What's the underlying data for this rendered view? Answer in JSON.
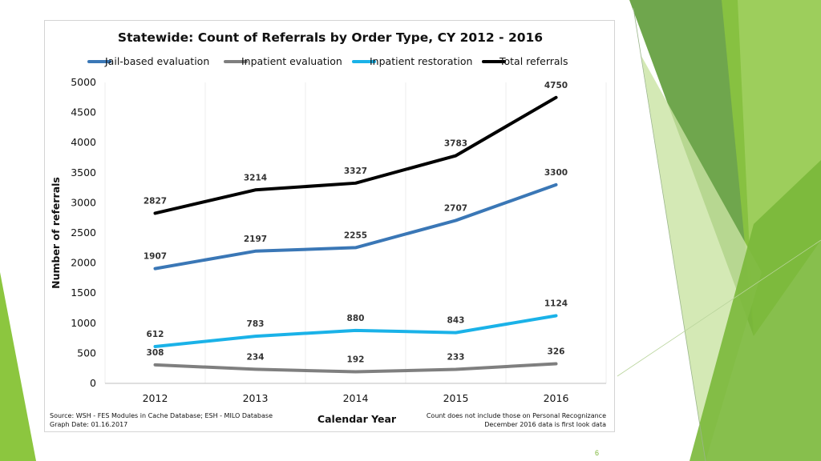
{
  "colors": {
    "jail": "#3a77b6",
    "inpatient_eval": "#7f7f7f",
    "inpatient_restoration": "#1ab2e8",
    "total": "#000000"
  },
  "page_number": "6",
  "chart_data": {
    "type": "line",
    "title": "Statewide: Count of Referrals by Order Type, CY 2012 - 2016",
    "xlabel": "Calendar Year",
    "ylabel": "Number of referrals",
    "categories": [
      "2012",
      "2013",
      "2014",
      "2015",
      "2016"
    ],
    "ylim": [
      0,
      5000
    ],
    "yticks": [
      0,
      500,
      1000,
      1500,
      2000,
      2500,
      3000,
      3500,
      4000,
      4500,
      5000
    ],
    "grid": "vertical",
    "legend_position": "top",
    "series": [
      {
        "name": "Jail-based evaluation",
        "color": "#3a77b6",
        "values": [
          1907,
          2197,
          2255,
          2707,
          3300
        ]
      },
      {
        "name": "Inpatient evaluation",
        "color": "#7f7f7f",
        "values": [
          308,
          234,
          192,
          233,
          326
        ]
      },
      {
        "name": "Inpatient restoration",
        "color": "#1ab2e8",
        "values": [
          612,
          783,
          880,
          843,
          1124
        ]
      },
      {
        "name": "Total referrals",
        "color": "#000000",
        "values": [
          2827,
          3214,
          3327,
          3783,
          4750
        ]
      }
    ],
    "notes": {
      "source_line1": "Source: WSH - FES Modules in Cache Database; ESH - MILO Database",
      "source_line2": "Graph Date: 01.16.2017",
      "caveat_line1": "Count does not include those on Personal Recognizance",
      "caveat_line2": "December 2016 data is first look data"
    }
  }
}
